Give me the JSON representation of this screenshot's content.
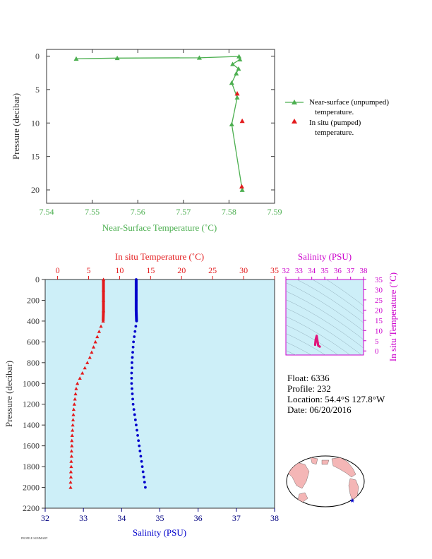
{
  "colors": {
    "green": "#4caf50",
    "red": "#e31a1c",
    "blue": "#0000cc",
    "magenta": "#cc00cc",
    "navy": "#000080",
    "axis_dark": "#333333",
    "plot_bg": "#cdeff8",
    "land": "#f4b6b6"
  },
  "float_info": {
    "float": "Float:  6336",
    "profile": "Profile:  232",
    "location": "Location:  54.4°S  127.8°W",
    "date": "Date:  06/20/2016"
  },
  "footer_text": "PROFILE SUMMARY",
  "chart_data": [
    {
      "type": "line",
      "xlabel": "Near-Surface Temperature (˚C)",
      "ylabel": "Pressure (decibar)",
      "xlim": [
        7.54,
        7.59
      ],
      "ylim": [
        22,
        -1
      ],
      "xticks": [
        "7.54",
        "7.55",
        "7.56",
        "7.57",
        "7.58",
        "7.59"
      ],
      "yticks": [
        "0",
        "5",
        "10",
        "15",
        "20"
      ],
      "legend_position": "right",
      "series": [
        {
          "name": "Near-surface (unpumped) temperature.",
          "marker": "triangle",
          "points": [
            [
              7.5465,
              0.4
            ],
            [
              7.5555,
              0.3
            ],
            [
              7.5735,
              0.25
            ],
            [
              7.5822,
              0.05
            ],
            [
              7.5824,
              0.5
            ],
            [
              7.5808,
              1.2
            ],
            [
              7.5821,
              1.9
            ],
            [
              7.5816,
              2.6
            ],
            [
              7.5806,
              4.0
            ],
            [
              7.5818,
              6.2
            ],
            [
              7.5806,
              10.2
            ],
            [
              7.5829,
              20.0
            ]
          ]
        },
        {
          "name": "In situ (pumped) temperature.",
          "marker": "triangle",
          "points": [
            [
              7.5818,
              5.6
            ],
            [
              7.5829,
              9.7
            ],
            [
              7.5828,
              19.5
            ]
          ]
        }
      ]
    },
    {
      "type": "line",
      "title_top": "In situ Temperature (˚C)",
      "xlabel_bottom": "Salinity (PSU)",
      "ylabel": "Pressure (decibar)",
      "temp_xlim": [
        -2,
        35
      ],
      "sal_xlim": [
        32,
        38
      ],
      "ylim": [
        2200,
        0
      ],
      "temp_ticks": [
        "0",
        "5",
        "10",
        "15",
        "20",
        "25",
        "30",
        "35"
      ],
      "sal_ticks": [
        "32",
        "33",
        "34",
        "35",
        "36",
        "37",
        "38"
      ],
      "yticks": [
        "0",
        "200",
        "400",
        "600",
        "800",
        "1000",
        "1200",
        "1400",
        "1600",
        "1800",
        "2000",
        "2200"
      ],
      "series": [
        {
          "name": "In situ Temperature",
          "marker": "triangle",
          "points": [
            [
              7.4,
              0
            ],
            [
              7.4,
              100
            ],
            [
              7.4,
              200
            ],
            [
              7.4,
              300
            ],
            [
              7.35,
              400
            ],
            [
              7.0,
              450
            ],
            [
              6.7,
              500
            ],
            [
              6.4,
              550
            ],
            [
              6.1,
              600
            ],
            [
              5.8,
              650
            ],
            [
              5.5,
              700
            ],
            [
              5.2,
              750
            ],
            [
              4.8,
              800
            ],
            [
              4.4,
              850
            ],
            [
              4.0,
              900
            ],
            [
              3.6,
              950
            ],
            [
              3.2,
              1000
            ],
            [
              3.0,
              1050
            ],
            [
              2.9,
              1100
            ],
            [
              2.8,
              1150
            ],
            [
              2.7,
              1200
            ],
            [
              2.6,
              1250
            ],
            [
              2.55,
              1300
            ],
            [
              2.5,
              1350
            ],
            [
              2.45,
              1400
            ],
            [
              2.4,
              1450
            ],
            [
              2.35,
              1500
            ],
            [
              2.3,
              1550
            ],
            [
              2.3,
              1600
            ],
            [
              2.25,
              1650
            ],
            [
              2.25,
              1700
            ],
            [
              2.2,
              1750
            ],
            [
              2.2,
              1800
            ],
            [
              2.15,
              1850
            ],
            [
              2.15,
              1900
            ],
            [
              2.1,
              1950
            ],
            [
              2.1,
              2000
            ]
          ]
        },
        {
          "name": "Salinity",
          "marker": "dot",
          "points": [
            [
              34.38,
              0
            ],
            [
              34.38,
              100
            ],
            [
              34.38,
              200
            ],
            [
              34.38,
              300
            ],
            [
              34.39,
              400
            ],
            [
              34.37,
              450
            ],
            [
              34.35,
              500
            ],
            [
              34.33,
              550
            ],
            [
              34.31,
              600
            ],
            [
              34.3,
              650
            ],
            [
              34.29,
              700
            ],
            [
              34.28,
              750
            ],
            [
              34.27,
              800
            ],
            [
              34.27,
              850
            ],
            [
              34.26,
              900
            ],
            [
              34.26,
              950
            ],
            [
              34.26,
              1000
            ],
            [
              34.27,
              1050
            ],
            [
              34.28,
              1100
            ],
            [
              34.29,
              1150
            ],
            [
              34.3,
              1200
            ],
            [
              34.32,
              1250
            ],
            [
              34.34,
              1300
            ],
            [
              34.36,
              1350
            ],
            [
              34.38,
              1400
            ],
            [
              34.4,
              1450
            ],
            [
              34.42,
              1500
            ],
            [
              34.44,
              1550
            ],
            [
              34.46,
              1600
            ],
            [
              34.48,
              1650
            ],
            [
              34.5,
              1700
            ],
            [
              34.52,
              1750
            ],
            [
              34.54,
              1800
            ],
            [
              34.56,
              1850
            ],
            [
              34.58,
              1900
            ],
            [
              34.6,
              1950
            ],
            [
              34.62,
              2000
            ]
          ]
        }
      ]
    },
    {
      "type": "scatter",
      "xlabel_top": "Salinity (PSU)",
      "ylabel_right": "In situ Temperature (˚C)",
      "xlim": [
        32,
        38
      ],
      "ylim": [
        -2,
        35
      ],
      "xticks": [
        "32",
        "33",
        "34",
        "35",
        "36",
        "37",
        "38"
      ],
      "yticks": [
        "0",
        "5",
        "10",
        "15",
        "20",
        "25",
        "30",
        "35"
      ],
      "series": [
        {
          "name": "T-S",
          "points": [
            [
              34.26,
              3.0
            ],
            [
              34.3,
              5.5
            ],
            [
              34.38,
              7.4
            ],
            [
              34.5,
              2.6
            ],
            [
              34.62,
              2.1
            ]
          ]
        }
      ]
    }
  ]
}
